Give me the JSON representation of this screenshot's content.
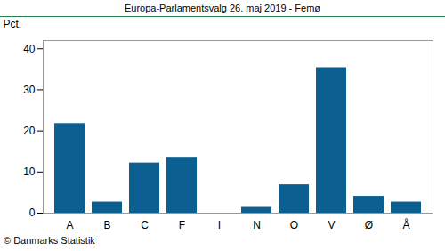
{
  "chart_data": {
    "type": "bar",
    "title": "Europa-Parlamentsvalg 26. maj 2019 - Femø",
    "y_label": "Pct.",
    "caption": "© Danmarks Statistik",
    "categories": [
      "A",
      "B",
      "C",
      "F",
      "I",
      "N",
      "O",
      "V",
      "Ø",
      "Å"
    ],
    "values": [
      21.8,
      2.7,
      12.2,
      13.6,
      0,
      1.4,
      6.9,
      35.4,
      4.1,
      2.7
    ],
    "color": "#0b5f91",
    "ylim": [
      0,
      42
    ],
    "yticks": [
      0,
      10,
      20,
      30,
      40
    ],
    "grid": false
  }
}
